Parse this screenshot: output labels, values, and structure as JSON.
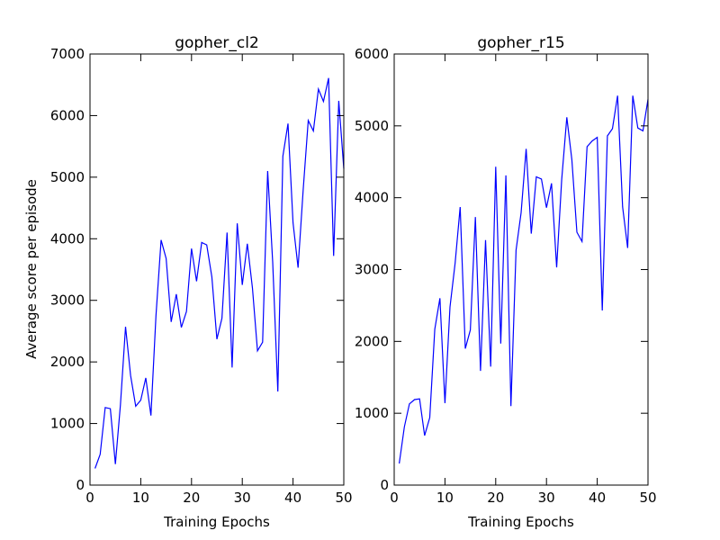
{
  "chart_data": [
    {
      "type": "line",
      "title": "gopher_cl2",
      "xlabel": "Training Epochs",
      "ylabel": "Average score per episode",
      "xlim": [
        0,
        50
      ],
      "ylim": [
        0,
        7000
      ],
      "xticks": [
        "0",
        "10",
        "20",
        "30",
        "40",
        "50"
      ],
      "yticks": [
        "0",
        "1000",
        "2000",
        "3000",
        "4000",
        "5000",
        "6000",
        "7000"
      ],
      "grid": false,
      "series": [
        {
          "color": "#0000ff",
          "x": [
            1,
            2,
            3,
            4,
            5,
            6,
            7,
            8,
            9,
            10,
            11,
            12,
            13,
            14,
            15,
            16,
            17,
            18,
            19,
            20,
            21,
            22,
            23,
            24,
            25,
            26,
            27,
            28,
            29,
            30,
            31,
            32,
            33,
            34,
            35,
            36,
            37,
            38,
            39,
            40,
            41,
            42,
            43,
            44,
            45,
            46,
            47,
            48,
            49,
            50
          ],
          "y": [
            270,
            500,
            1260,
            1240,
            340,
            1300,
            2570,
            1780,
            1280,
            1380,
            1740,
            1130,
            2750,
            3980,
            3680,
            2650,
            3100,
            2560,
            2820,
            3840,
            3310,
            3940,
            3900,
            3380,
            2370,
            2710,
            4100,
            1910,
            4250,
            3250,
            3920,
            3200,
            2180,
            2320,
            5100,
            3620,
            1520,
            5340,
            5870,
            4260,
            3530,
            4800,
            5920,
            5750,
            6430,
            6230,
            6610,
            3720,
            6240,
            5140
          ]
        }
      ]
    },
    {
      "type": "line",
      "title": "gopher_r15",
      "xlabel": "Training Epochs",
      "ylabel": "",
      "xlim": [
        0,
        50
      ],
      "ylim": [
        0,
        6000
      ],
      "xticks": [
        "0",
        "10",
        "20",
        "30",
        "40",
        "50"
      ],
      "yticks": [
        "0",
        "1000",
        "2000",
        "3000",
        "4000",
        "5000",
        "6000"
      ],
      "grid": false,
      "series": [
        {
          "color": "#0000ff",
          "x": [
            1,
            2,
            3,
            4,
            5,
            6,
            7,
            8,
            9,
            10,
            11,
            12,
            13,
            14,
            15,
            16,
            17,
            18,
            19,
            20,
            21,
            22,
            23,
            24,
            25,
            26,
            27,
            28,
            29,
            30,
            31,
            32,
            33,
            34,
            35,
            36,
            37,
            38,
            39,
            40,
            41,
            42,
            43,
            44,
            45,
            46,
            47,
            48,
            49,
            50
          ],
          "y": [
            300,
            810,
            1130,
            1190,
            1200,
            690,
            940,
            2170,
            2600,
            1140,
            2480,
            3090,
            3870,
            1900,
            2160,
            3730,
            1590,
            3410,
            1650,
            4430,
            1970,
            4310,
            1100,
            3270,
            3790,
            4680,
            3500,
            4290,
            4260,
            3860,
            4200,
            3030,
            4250,
            5120,
            4530,
            3520,
            3390,
            4710,
            4790,
            4840,
            2430,
            4860,
            4960,
            5420,
            3870,
            3300,
            5420,
            4970,
            4930,
            5370
          ]
        }
      ]
    }
  ]
}
